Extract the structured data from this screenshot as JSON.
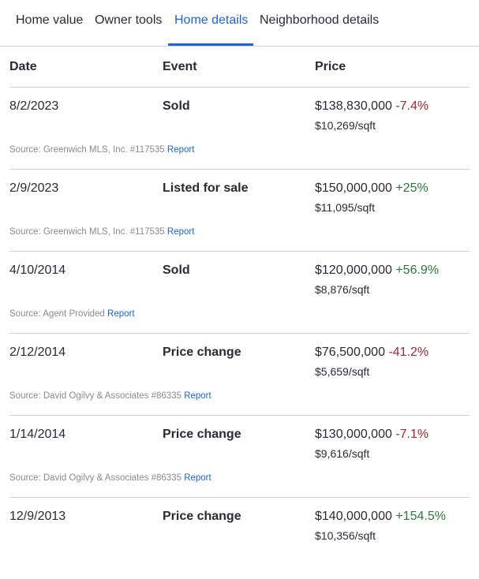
{
  "tabs": [
    {
      "label": "Home value"
    },
    {
      "label": "Owner tools"
    },
    {
      "label": "Home details"
    },
    {
      "label": "Neighborhood details"
    }
  ],
  "active_tab": "Home details",
  "colors": {
    "accent": "#1e64d4",
    "negative": "#a8262e",
    "positive": "#2a7a38"
  },
  "table": {
    "headers": {
      "date": "Date",
      "event": "Event",
      "price": "Price"
    },
    "rows": [
      {
        "date": "8/2/2023",
        "event": "Sold",
        "price": "$138,830,000",
        "change": "-7.4%",
        "direction": "neg",
        "sqft": "$10,269/sqft",
        "source": "Source: Greenwich MLS, Inc. #117535",
        "report": "Report"
      },
      {
        "date": "2/9/2023",
        "event": "Listed for sale",
        "price": "$150,000,000",
        "change": "+25%",
        "direction": "pos",
        "sqft": "$11,095/sqft",
        "source": "Source: Greenwich MLS, Inc. #117535",
        "report": "Report"
      },
      {
        "date": "4/10/2014",
        "event": "Sold",
        "price": "$120,000,000",
        "change": "+56.9%",
        "direction": "pos",
        "sqft": "$8,876/sqft",
        "source": "Source: Agent Provided",
        "report": "Report"
      },
      {
        "date": "2/12/2014",
        "event": "Price change",
        "price": "$76,500,000",
        "change": "-41.2%",
        "direction": "neg",
        "sqft": "$5,659/sqft",
        "source": "Source: David Ogilvy & Associates #86335",
        "report": "Report"
      },
      {
        "date": "1/14/2014",
        "event": "Price change",
        "price": "$130,000,000",
        "change": "-7.1%",
        "direction": "neg",
        "sqft": "$9,616/sqft",
        "source": "Source: David Ogilvy & Associates #86335",
        "report": "Report"
      },
      {
        "date": "12/9/2013",
        "event": "Price change",
        "price": "$140,000,000",
        "change": "+154.5%",
        "direction": "pos",
        "sqft": "$10,356/sqft",
        "source": "",
        "report": ""
      }
    ]
  }
}
